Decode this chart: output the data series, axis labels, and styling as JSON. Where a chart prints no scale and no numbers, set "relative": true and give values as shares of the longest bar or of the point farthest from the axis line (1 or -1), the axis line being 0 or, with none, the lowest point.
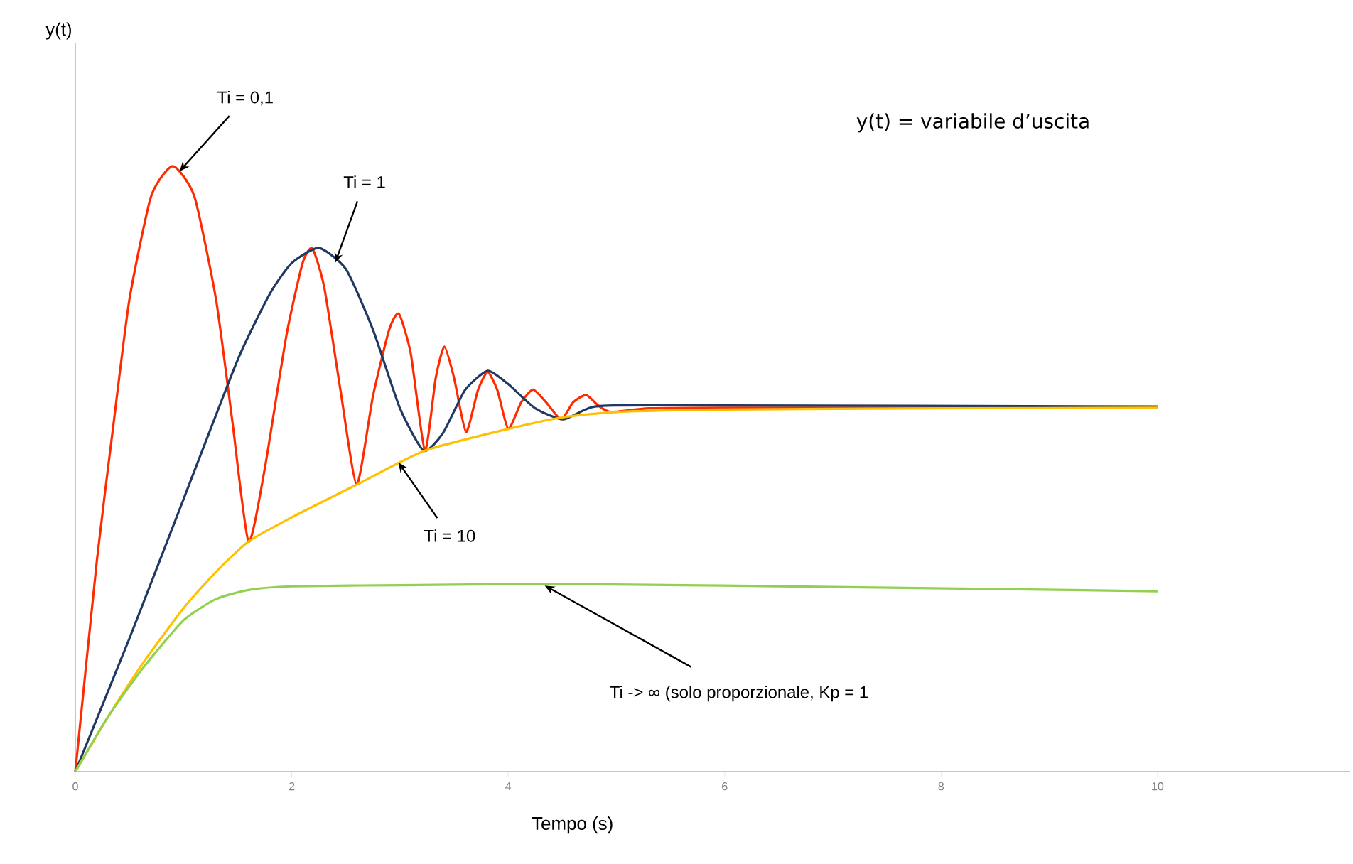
{
  "chart_data": {
    "type": "line",
    "relative": true,
    "xlabel": "Tempo (s)",
    "xlim": [
      0,
      11.78
    ],
    "xticks": [
      0,
      2,
      4,
      6,
      8,
      10
    ],
    "grid": false,
    "marker": "none",
    "line_style": "solid",
    "series": [
      {
        "color": "#ff2a00",
        "x": [
          0,
          0.2,
          0.35,
          0.5,
          0.7,
          0.9,
          1.1,
          1.3,
          1.45,
          1.6,
          1.75,
          1.95,
          2.1,
          2.19,
          2.3,
          2.45,
          2.6,
          2.75,
          2.9,
          2.99,
          3.1,
          3.23,
          3.33,
          3.41,
          3.5,
          3.61,
          3.72,
          3.81,
          3.9,
          4.0,
          4.12,
          4.23,
          4.35,
          4.49,
          4.6,
          4.72,
          4.83,
          4.95,
          5.3,
          6,
          10
        ],
        "values": [
          0,
          0.35,
          0.57,
          0.78,
          0.95,
          1.0,
          0.95,
          0.78,
          0.58,
          0.38,
          0.5,
          0.72,
          0.84,
          0.864,
          0.8,
          0.63,
          0.474,
          0.62,
          0.73,
          0.756,
          0.69,
          0.53,
          0.65,
          0.702,
          0.65,
          0.561,
          0.63,
          0.66,
          0.63,
          0.566,
          0.61,
          0.631,
          0.61,
          0.582,
          0.61,
          0.622,
          0.605,
          0.594,
          0.6,
          0.601,
          0.601
        ]
      },
      {
        "color": "#1f3864",
        "x": [
          0,
          0.5,
          1.0,
          1.5,
          1.8,
          2.0,
          2.25,
          2.5,
          2.75,
          3.0,
          3.22,
          3.4,
          3.6,
          3.81,
          4.0,
          4.25,
          4.51,
          4.8,
          5.5,
          10
        ],
        "values": [
          0,
          0.22,
          0.45,
          0.68,
          0.79,
          0.84,
          0.865,
          0.83,
          0.73,
          0.6,
          0.53,
          0.56,
          0.63,
          0.662,
          0.64,
          0.6,
          0.582,
          0.603,
          0.605,
          0.603
        ]
      },
      {
        "color": "#ffc000",
        "x": [
          0,
          0.3,
          0.62,
          1.0,
          1.3,
          1.6,
          2.0,
          2.6,
          3.23,
          4.0,
          4.5,
          5.0,
          6.0,
          8.0,
          10
        ],
        "values": [
          0,
          0.09,
          0.178,
          0.27,
          0.33,
          0.38,
          0.42,
          0.474,
          0.53,
          0.566,
          0.585,
          0.594,
          0.598,
          0.6,
          0.601
        ]
      },
      {
        "color": "#92d050",
        "x": [
          0,
          0.3,
          0.62,
          1.0,
          1.3,
          1.6,
          2.0,
          3.0,
          4.5,
          7.0,
          10
        ],
        "values": [
          0,
          0.09,
          0.17,
          0.25,
          0.285,
          0.3,
          0.306,
          0.308,
          0.31,
          0.305,
          0.298
        ]
      }
    ],
    "annotations": [
      {
        "text": "Ti = 0,1",
        "x": 0.98,
        "y": 0.995
      },
      {
        "text": "Ti = 1",
        "x": 2.41,
        "y": 0.845
      },
      {
        "text": "Ti = 10",
        "x": 3.0,
        "y": 0.507
      },
      {
        "text": "Ti -> ∞ (solo proporzionale, Kp = 1",
        "x": 4.36,
        "y": 0.305
      },
      "y(t) = variabile d’uscita",
      "y(t)"
    ]
  }
}
